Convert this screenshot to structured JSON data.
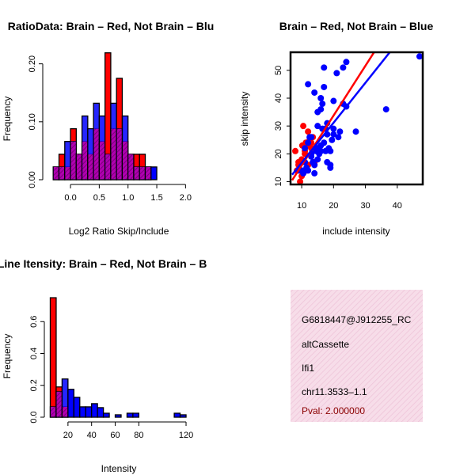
{
  "chart_data": [
    {
      "id": "ratio",
      "type": "bar",
      "title": "RatioData: Brain – Red, Not Brain – Blu",
      "xlabel": "Log2 Ratio Skip/Include",
      "ylabel": "Frequency",
      "xticks": [
        "0.0",
        "0.5",
        "1.0",
        "1.5",
        "2.0"
      ],
      "yticks": [
        "0.00",
        "0.10",
        "0.20"
      ],
      "xlim": [
        -0.4,
        2.05
      ],
      "ylim": [
        0,
        0.22
      ],
      "bins": [
        {
          "x0": -0.3,
          "x1": -0.2,
          "red": 0.022,
          "blue": 0.022
        },
        {
          "x0": -0.2,
          "x1": -0.1,
          "red": 0.044,
          "blue": 0.022
        },
        {
          "x0": -0.1,
          "x1": 0.0,
          "red": 0.022,
          "blue": 0.066
        },
        {
          "x0": 0.0,
          "x1": 0.1,
          "red": 0.088,
          "blue": 0.066
        },
        {
          "x0": 0.1,
          "x1": 0.2,
          "red": 0.044,
          "blue": 0.044
        },
        {
          "x0": 0.2,
          "x1": 0.3,
          "red": 0.066,
          "blue": 0.11
        },
        {
          "x0": 0.3,
          "x1": 0.4,
          "red": 0.044,
          "blue": 0.088
        },
        {
          "x0": 0.4,
          "x1": 0.5,
          "red": 0.088,
          "blue": 0.132
        },
        {
          "x0": 0.5,
          "x1": 0.6,
          "red": 0.066,
          "blue": 0.11
        },
        {
          "x0": 0.6,
          "x1": 0.7,
          "red": 0.219,
          "blue": 0.044
        },
        {
          "x0": 0.7,
          "x1": 0.8,
          "red": 0.088,
          "blue": 0.132
        },
        {
          "x0": 0.8,
          "x1": 0.9,
          "red": 0.175,
          "blue": 0.088
        },
        {
          "x0": 0.9,
          "x1": 1.0,
          "red": 0.066,
          "blue": 0.11
        },
        {
          "x0": 1.0,
          "x1": 1.1,
          "red": 0.044,
          "blue": 0.044
        },
        {
          "x0": 1.1,
          "x1": 1.2,
          "red": 0.044,
          "blue": 0.022
        },
        {
          "x0": 1.2,
          "x1": 1.3,
          "red": 0.044,
          "blue": 0.022
        },
        {
          "x0": 1.3,
          "x1": 1.4,
          "red": 0.022,
          "blue": 0.022
        },
        {
          "x0": 1.4,
          "x1": 1.5,
          "red": 0,
          "blue": 0.022
        }
      ],
      "series": [
        {
          "name": "Brain",
          "color": "#ff0000"
        },
        {
          "name": "Not Brain",
          "color": "#0000ff"
        }
      ]
    },
    {
      "id": "scatter",
      "type": "scatter",
      "title": "Brain – Red, Not Brain – Blue",
      "xlabel": "include intensity",
      "ylabel": "skip intensity",
      "xticks": [
        10,
        20,
        30,
        40
      ],
      "yticks": [
        10,
        20,
        30,
        40,
        50
      ],
      "xlim": [
        6.5,
        48
      ],
      "ylim": [
        9,
        56.5
      ],
      "series": [
        {
          "name": "Brain",
          "color": "#ff0000",
          "points": [
            [
              8,
              21
            ],
            [
              8.5,
              14
            ],
            [
              9,
              16
            ],
            [
              9,
              17
            ],
            [
              9.5,
              10
            ],
            [
              10,
              12
            ],
            [
              10,
              18
            ],
            [
              10.2,
              23
            ],
            [
              10.5,
              30
            ],
            [
              11,
              20
            ],
            [
              11,
              21
            ],
            [
              11.3,
              24
            ],
            [
              11.5,
              14
            ],
            [
              12,
              16
            ],
            [
              12,
              23
            ],
            [
              12,
              28
            ],
            [
              12.5,
              25
            ],
            [
              13,
              22
            ],
            [
              13,
              24
            ],
            [
              13.5,
              26
            ],
            [
              14,
              17
            ],
            [
              14,
              16
            ],
            [
              15,
              22
            ]
          ],
          "fit": [
            [
              7,
              10.5
            ],
            [
              33,
              57
            ]
          ]
        },
        {
          "name": "Not Brain",
          "color": "#0000ff",
          "points": [
            [
              9,
              14
            ],
            [
              10,
              14
            ],
            [
              10.5,
              13
            ],
            [
              11,
              17
            ],
            [
              11,
              22
            ],
            [
              11.5,
              15
            ],
            [
              12,
              14
            ],
            [
              12,
              45
            ],
            [
              12,
              24
            ],
            [
              12.5,
              26
            ],
            [
              13,
              20
            ],
            [
              13,
              19
            ],
            [
              13,
              26
            ],
            [
              13.5,
              17
            ],
            [
              14,
              13
            ],
            [
              14,
              42
            ],
            [
              14,
              16
            ],
            [
              14.5,
              21
            ],
            [
              15,
              22
            ],
            [
              15,
              30
            ],
            [
              15,
              35
            ],
            [
              15,
              18
            ],
            [
              15.5,
              20
            ],
            [
              16,
              21
            ],
            [
              16,
              23
            ],
            [
              16,
              36
            ],
            [
              16,
              40
            ],
            [
              16.5,
              38
            ],
            [
              16.5,
              29
            ],
            [
              17,
              51
            ],
            [
              17,
              44
            ],
            [
              17,
              24
            ],
            [
              17.5,
              21
            ],
            [
              17.5,
              29
            ],
            [
              18,
              31
            ],
            [
              18,
              27
            ],
            [
              18,
              17
            ],
            [
              18.5,
              22
            ],
            [
              19,
              21
            ],
            [
              19,
              15
            ],
            [
              19,
              16
            ],
            [
              19.5,
              25
            ],
            [
              20,
              39
            ],
            [
              20,
              29
            ],
            [
              20,
              27
            ],
            [
              21,
              49
            ],
            [
              21.5,
              26
            ],
            [
              22,
              28
            ],
            [
              23,
              51
            ],
            [
              23,
              38
            ],
            [
              24,
              53
            ],
            [
              24,
              37
            ],
            [
              27,
              28
            ],
            [
              36.5,
              36
            ],
            [
              47,
              55
            ]
          ],
          "fit": [
            [
              7,
              12.5
            ],
            [
              38,
              57
            ]
          ]
        }
      ]
    },
    {
      "id": "intensity",
      "type": "bar",
      "title": "Exon Line Itensity: Brain – Red, Not Brain – B",
      "xlabel": "Intensity",
      "ylabel": "Frequency",
      "xticks": [
        20,
        40,
        60,
        80,
        120
      ],
      "yticks": [
        "0.0",
        "0.2",
        "0.4",
        "0.6"
      ],
      "xlim": [
        4,
        122
      ],
      "ylim": [
        0,
        0.8
      ],
      "bins": [
        {
          "x0": 5,
          "x1": 10,
          "red": 0.75,
          "blue": 0.065
        },
        {
          "x0": 10,
          "x1": 15,
          "red": 0.19,
          "blue": 0.16
        },
        {
          "x0": 15,
          "x1": 20,
          "red": 0.065,
          "blue": 0.24
        },
        {
          "x0": 20,
          "x1": 25,
          "red": 0,
          "blue": 0.175
        },
        {
          "x0": 25,
          "x1": 30,
          "red": 0,
          "blue": 0.125
        },
        {
          "x0": 30,
          "x1": 35,
          "red": 0,
          "blue": 0.065
        },
        {
          "x0": 35,
          "x1": 40,
          "red": 0,
          "blue": 0.065
        },
        {
          "x0": 40,
          "x1": 45,
          "red": 0,
          "blue": 0.085
        },
        {
          "x0": 45,
          "x1": 50,
          "red": 0,
          "blue": 0.06
        },
        {
          "x0": 50,
          "x1": 55,
          "red": 0,
          "blue": 0.025
        },
        {
          "x0": 60,
          "x1": 65,
          "red": 0,
          "blue": 0.015
        },
        {
          "x0": 70,
          "x1": 75,
          "red": 0,
          "blue": 0.025
        },
        {
          "x0": 75,
          "x1": 80,
          "red": 0,
          "blue": 0.025
        },
        {
          "x0": 110,
          "x1": 115,
          "red": 0,
          "blue": 0.025
        },
        {
          "x0": 115,
          "x1": 120,
          "red": 0,
          "blue": 0.015
        }
      ],
      "series": [
        {
          "name": "Brain",
          "color": "#ff0000"
        },
        {
          "name": "Not Brain",
          "color": "#0000ff"
        }
      ]
    }
  ],
  "info_panel": {
    "probe_id": "G6818447@J912255_RC",
    "event_type": "altCassette",
    "gene": "Ifi1",
    "locus": "chr11.3533–1.1",
    "pval": "Pval: 2.000000",
    "bg_color": "#f7dde9"
  }
}
